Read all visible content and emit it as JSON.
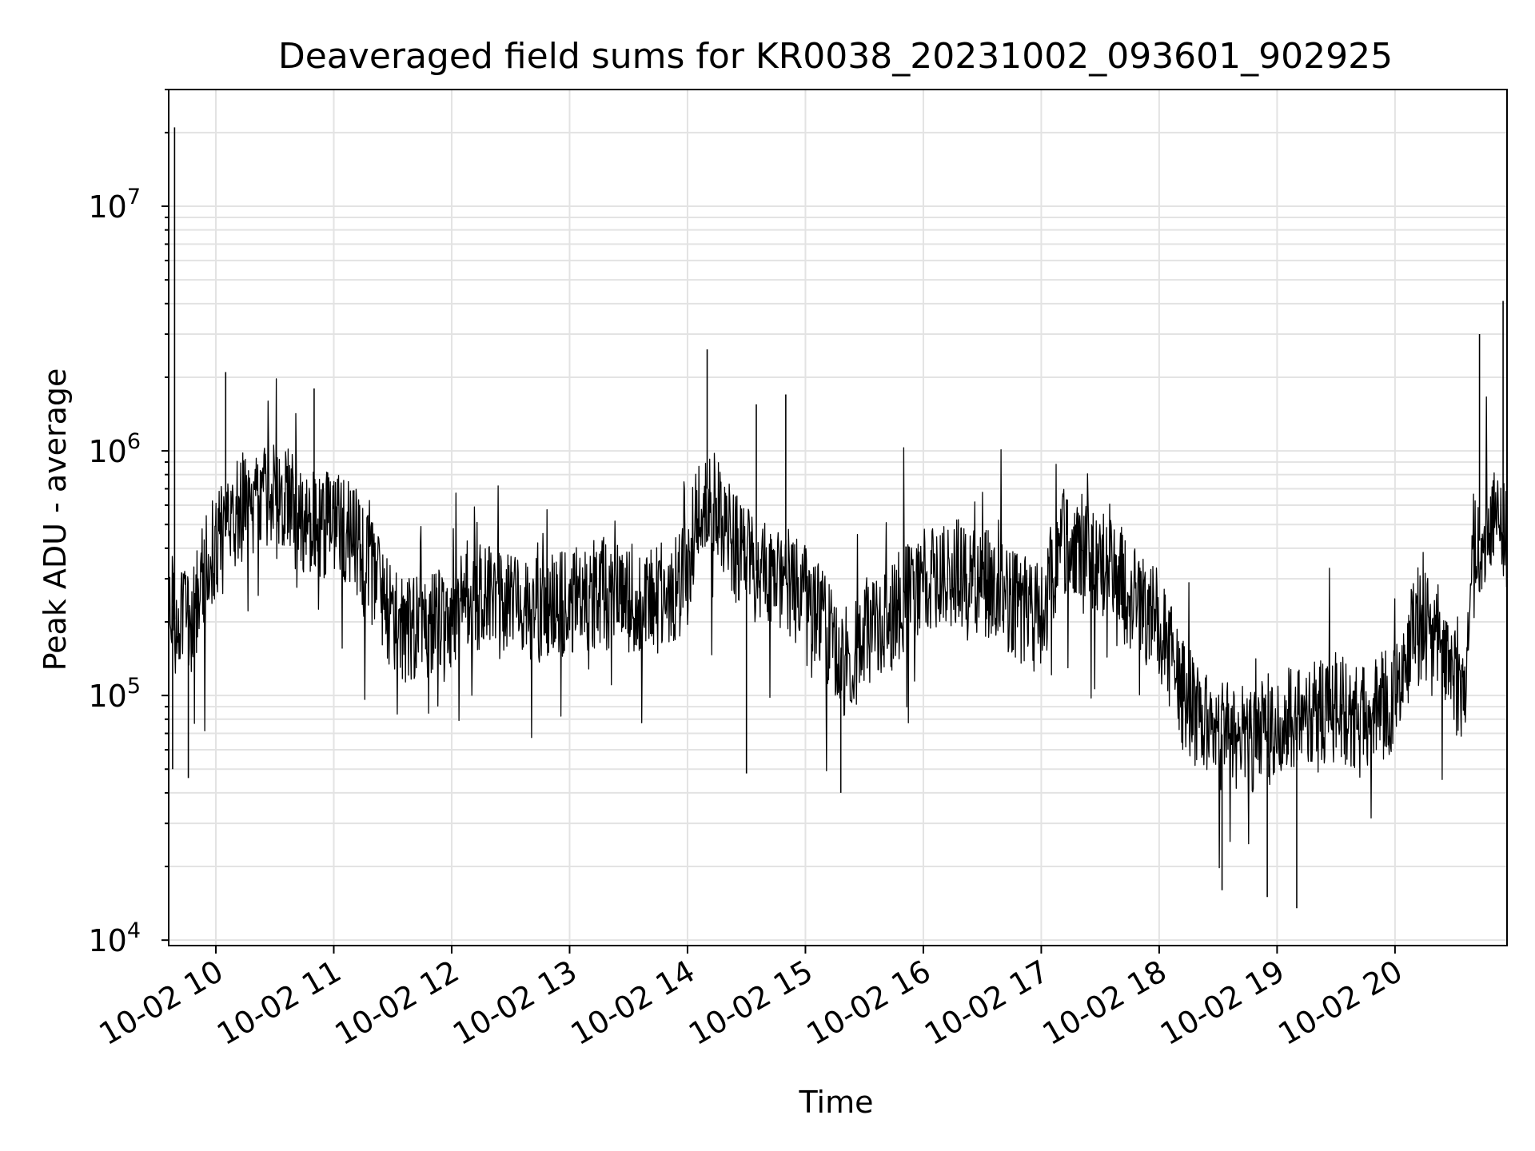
{
  "chart_data": {
    "type": "line",
    "title": "Deaveraged field sums for KR0038_20231002_093601_902925",
    "xlabel": "Time",
    "ylabel": "Peak ADU - average",
    "yscale": "log",
    "grid": true,
    "ylim": [
      9500,
      30000000
    ],
    "xlim": [
      "2023-10-02 09:36",
      "2023-10-02 20:57"
    ],
    "x_ticks": [
      "10-02 10",
      "10-02 11",
      "10-02 12",
      "10-02 13",
      "10-02 14",
      "10-02 15",
      "10-02 16",
      "10-02 17",
      "10-02 18",
      "10-02 19",
      "10-02 20"
    ],
    "y_ticks": [
      {
        "value": 10000,
        "base": "10",
        "exp": "4"
      },
      {
        "value": 100000,
        "base": "10",
        "exp": "5"
      },
      {
        "value": 1000000,
        "base": "10",
        "exp": "6"
      },
      {
        "value": 10000000,
        "base": "10",
        "exp": "7"
      }
    ],
    "series": [
      {
        "color": "#000000",
        "x": [
          "2023-10-02 09:36",
          "2023-10-02 09:40",
          "2023-10-02 09:44",
          "2023-10-02 09:48",
          "2023-10-02 09:52",
          "2023-10-02 09:56",
          "2023-10-02 10:00",
          "2023-10-02 10:05",
          "2023-10-02 10:10",
          "2023-10-02 10:15",
          "2023-10-02 10:20",
          "2023-10-02 10:25",
          "2023-10-02 10:30",
          "2023-10-02 10:35",
          "2023-10-02 10:40",
          "2023-10-02 10:45",
          "2023-10-02 10:50",
          "2023-10-02 10:55",
          "2023-10-02 11:00",
          "2023-10-02 11:10",
          "2023-10-02 11:20",
          "2023-10-02 11:30",
          "2023-10-02 11:40",
          "2023-10-02 11:50",
          "2023-10-02 12:00",
          "2023-10-02 12:15",
          "2023-10-02 12:30",
          "2023-10-02 12:45",
          "2023-10-02 13:00",
          "2023-10-02 13:15",
          "2023-10-02 13:30",
          "2023-10-02 13:45",
          "2023-10-02 14:00",
          "2023-10-02 14:05",
          "2023-10-02 14:10",
          "2023-10-02 14:15",
          "2023-10-02 14:20",
          "2023-10-02 14:30",
          "2023-10-02 14:40",
          "2023-10-02 14:50",
          "2023-10-02 15:00",
          "2023-10-02 15:10",
          "2023-10-02 15:20",
          "2023-10-02 15:30",
          "2023-10-02 15:45",
          "2023-10-02 16:00",
          "2023-10-02 16:15",
          "2023-10-02 16:30",
          "2023-10-02 16:45",
          "2023-10-02 17:00",
          "2023-10-02 17:10",
          "2023-10-02 17:20",
          "2023-10-02 17:30",
          "2023-10-02 17:45",
          "2023-10-02 18:00",
          "2023-10-02 18:10",
          "2023-10-02 18:20",
          "2023-10-02 18:30",
          "2023-10-02 18:45",
          "2023-10-02 19:00",
          "2023-10-02 19:15",
          "2023-10-02 19:30",
          "2023-10-02 19:45",
          "2023-10-02 20:00",
          "2023-10-02 20:10",
          "2023-10-02 20:20",
          "2023-10-02 20:30",
          "2023-10-02 20:35",
          "2023-10-02 20:40",
          "2023-10-02 20:45",
          "2023-10-02 20:50",
          "2023-10-02 20:57"
        ],
        "y": [
          300000,
          180000,
          250000,
          200000,
          280000,
          350000,
          400000,
          450000,
          550000,
          600000,
          650000,
          620000,
          700000,
          680000,
          550000,
          500000,
          520000,
          480000,
          500000,
          450000,
          300000,
          200000,
          180000,
          190000,
          220000,
          250000,
          230000,
          220000,
          240000,
          260000,
          250000,
          250000,
          300000,
          600000,
          700000,
          550000,
          450000,
          350000,
          300000,
          300000,
          250000,
          200000,
          120000,
          180000,
          220000,
          300000,
          320000,
          300000,
          240000,
          200000,
          450000,
          400000,
          350000,
          250000,
          200000,
          110000,
          80000,
          70000,
          65000,
          75000,
          85000,
          90000,
          80000,
          100000,
          180000,
          200000,
          100000,
          90000,
          400000,
          450000,
          500000,
          450000
        ]
      }
    ],
    "peaks": [
      {
        "x": "2023-10-02 09:39",
        "y": 21000000
      },
      {
        "x": "2023-10-02 10:05",
        "y": 2100000
      },
      {
        "x": "2023-10-02 10:50",
        "y": 1800000
      },
      {
        "x": "2023-10-02 14:10",
        "y": 2600000
      },
      {
        "x": "2023-10-02 14:35",
        "y": 1550000
      },
      {
        "x": "2023-10-02 14:50",
        "y": 1700000
      },
      {
        "x": "2023-10-02 20:43",
        "y": 3000000
      },
      {
        "x": "2023-10-02 20:55",
        "y": 4100000
      }
    ],
    "troughs": [
      {
        "x": "2023-10-02 09:38",
        "y": 50000
      },
      {
        "x": "2023-10-02 09:46",
        "y": 46000
      },
      {
        "x": "2023-10-02 14:30",
        "y": 48000
      },
      {
        "x": "2023-10-02 15:18",
        "y": 40000
      },
      {
        "x": "2023-10-02 18:32",
        "y": 16000
      },
      {
        "x": "2023-10-02 18:55",
        "y": 15000
      },
      {
        "x": "2023-10-02 19:10",
        "y": 13500
      }
    ]
  }
}
